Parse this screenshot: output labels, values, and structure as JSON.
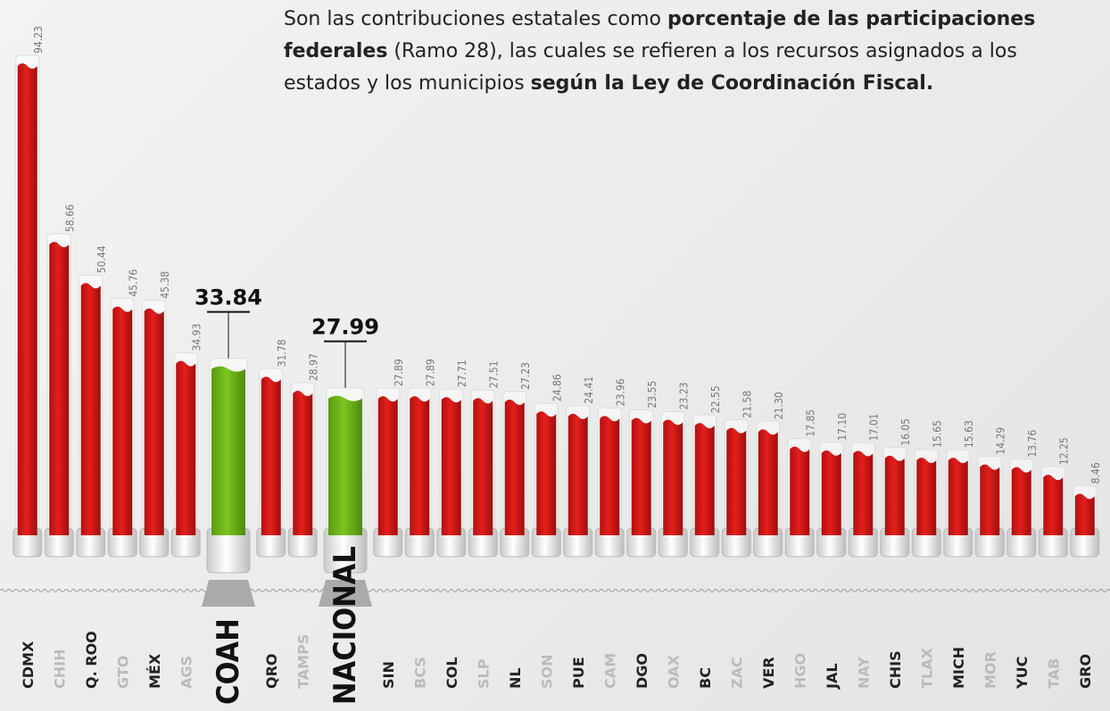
{
  "intro": [
    {
      "text": "Son las contribuciones estatales como ",
      "bold": false
    },
    {
      "text": "porcentaje de las participaciones federales",
      "bold": true
    },
    {
      "text": " (Ramo 28), las cuales se refieren a los recursos asignados a los estados y los municipios ",
      "bold": false
    },
    {
      "text": "según la Ley de Coordinación Fiscal.",
      "bold": true
    }
  ],
  "chart_data": {
    "type": "bar",
    "categories": [
      "CDMX",
      "CHIH",
      "Q. ROO",
      "GTO",
      "MÉX",
      "AGS",
      "COAH",
      "QRO",
      "TAMPS",
      "NACIONAL",
      "SIN",
      "BCS",
      "COL",
      "SLP",
      "NL",
      "SON",
      "PUE",
      "CAM",
      "DGO",
      "OAX",
      "BC",
      "ZAC",
      "VER",
      "HGO",
      "JAL",
      "NAY",
      "CHIS",
      "TLAX",
      "MICH",
      "MOR",
      "YUC",
      "TAB",
      "GRO"
    ],
    "values": [
      94.23,
      58.66,
      50.44,
      45.76,
      45.38,
      34.93,
      33.84,
      31.78,
      28.97,
      27.99,
      27.89,
      27.89,
      27.71,
      27.51,
      27.23,
      24.86,
      24.41,
      23.96,
      23.55,
      23.23,
      22.55,
      21.58,
      21.3,
      17.85,
      17.1,
      17.01,
      16.05,
      15.65,
      15.63,
      14.29,
      13.76,
      12.25,
      8.46
    ],
    "value_labels": [
      "94.23",
      "58.66",
      "50.44",
      "45.76",
      "45.38",
      "34.93",
      "33.84",
      "31.78",
      "28.97",
      "27.99",
      "27.89",
      "27.89",
      "27.71",
      "27.51",
      "27.23",
      "24.86",
      "24.41",
      "23.96",
      "23.55",
      "23.23",
      "22.55",
      "21.58",
      "21.30",
      "17.85",
      "17.10",
      "17.01",
      "16.05",
      "15.65",
      "15.63",
      "14.29",
      "13.76",
      "12.25",
      "8.46"
    ],
    "color": "#e41f1c",
    "highlight": [
      6,
      9
    ],
    "highlight_color": "#7cc520"
  }
}
